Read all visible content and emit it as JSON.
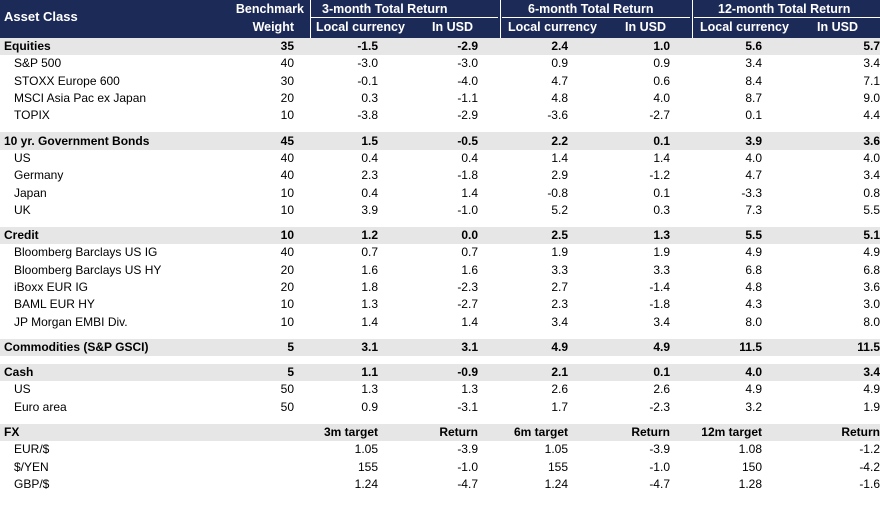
{
  "header": {
    "asset_class": "Asset Class",
    "benchmark": "Benchmark",
    "weight": "Weight",
    "groups": [
      {
        "title": "3-month Total Return",
        "local": "Local currency",
        "usd": "In USD"
      },
      {
        "title": "6-month Total Return",
        "local": "Local currency",
        "usd": "In USD"
      },
      {
        "title": "12-month Total Return",
        "local": "Local currency",
        "usd": "In USD"
      }
    ]
  },
  "sections": [
    {
      "name": "Equities",
      "w": "35",
      "v": [
        "-1.5",
        "-2.9",
        "2.4",
        "1.0",
        "5.6",
        "5.7"
      ],
      "items": [
        {
          "name": "S&P 500",
          "w": "40",
          "v": [
            "-3.0",
            "-3.0",
            "0.9",
            "0.9",
            "3.4",
            "3.4"
          ]
        },
        {
          "name": "STOXX Europe 600",
          "w": "30",
          "v": [
            "-0.1",
            "-4.0",
            "4.7",
            "0.6",
            "8.4",
            "7.1"
          ]
        },
        {
          "name": "MSCI Asia Pac ex Japan",
          "w": "20",
          "v": [
            "0.3",
            "-1.1",
            "4.8",
            "4.0",
            "8.7",
            "9.0"
          ]
        },
        {
          "name": "TOPIX",
          "w": "10",
          "v": [
            "-3.8",
            "-2.9",
            "-3.6",
            "-2.7",
            "0.1",
            "4.4"
          ]
        }
      ]
    },
    {
      "name": "10 yr. Government Bonds",
      "w": "45",
      "v": [
        "1.5",
        "-0.5",
        "2.2",
        "0.1",
        "3.9",
        "3.6"
      ],
      "items": [
        {
          "name": "US",
          "w": "40",
          "v": [
            "0.4",
            "0.4",
            "1.4",
            "1.4",
            "4.0",
            "4.0"
          ]
        },
        {
          "name": "Germany",
          "w": "40",
          "v": [
            "2.3",
            "-1.8",
            "2.9",
            "-1.2",
            "4.7",
            "3.4"
          ]
        },
        {
          "name": "Japan",
          "w": "10",
          "v": [
            "0.4",
            "1.4",
            "-0.8",
            "0.1",
            "-3.3",
            "0.8"
          ]
        },
        {
          "name": "UK",
          "w": "10",
          "v": [
            "3.9",
            "-1.0",
            "5.2",
            "0.3",
            "7.3",
            "5.5"
          ]
        }
      ]
    },
    {
      "name": "Credit",
      "w": "10",
      "v": [
        "1.2",
        "0.0",
        "2.5",
        "1.3",
        "5.5",
        "5.1"
      ],
      "items": [
        {
          "name": "Bloomberg Barclays US IG",
          "w": "40",
          "v": [
            "0.7",
            "0.7",
            "1.9",
            "1.9",
            "4.9",
            "4.9"
          ]
        },
        {
          "name": "Bloomberg Barclays US HY",
          "w": "20",
          "v": [
            "1.6",
            "1.6",
            "3.3",
            "3.3",
            "6.8",
            "6.8"
          ]
        },
        {
          "name": "iBoxx EUR IG",
          "w": "20",
          "v": [
            "1.8",
            "-2.3",
            "2.7",
            "-1.4",
            "4.8",
            "3.6"
          ]
        },
        {
          "name": "BAML EUR HY",
          "w": "10",
          "v": [
            "1.3",
            "-2.7",
            "2.3",
            "-1.8",
            "4.3",
            "3.0"
          ]
        },
        {
          "name": "JP Morgan EMBI Div.",
          "w": "10",
          "v": [
            "1.4",
            "1.4",
            "3.4",
            "3.4",
            "8.0",
            "8.0"
          ]
        }
      ]
    },
    {
      "name": "Commodities (S&P GSCI)",
      "w": "5",
      "v": [
        "3.1",
        "3.1",
        "4.9",
        "4.9",
        "11.5",
        "11.5"
      ],
      "items": []
    },
    {
      "name": "Cash",
      "w": "5",
      "v": [
        "1.1",
        "-0.9",
        "2.1",
        "0.1",
        "4.0",
        "3.4"
      ],
      "items": [
        {
          "name": "US",
          "w": "50",
          "v": [
            "1.3",
            "1.3",
            "2.6",
            "2.6",
            "4.9",
            "4.9"
          ]
        },
        {
          "name": "Euro area",
          "w": "50",
          "v": [
            "0.9",
            "-3.1",
            "1.7",
            "-2.3",
            "3.2",
            "1.9"
          ]
        }
      ]
    }
  ],
  "fx": {
    "label": "FX",
    "headers": [
      "3m target",
      "Return",
      "6m target",
      "Return",
      "12m target",
      "Return"
    ],
    "rows": [
      {
        "name": "EUR/$",
        "v": [
          "1.05",
          "-3.9",
          "1.05",
          "-3.9",
          "1.08",
          "-1.2"
        ]
      },
      {
        "name": "$/YEN",
        "v": [
          "155",
          "-1.0",
          "155",
          "-1.0",
          "150",
          "-4.2"
        ]
      },
      {
        "name": "GBP/$",
        "v": [
          "1.24",
          "-4.7",
          "1.24",
          "-4.7",
          "1.28",
          "-1.6"
        ]
      }
    ]
  }
}
